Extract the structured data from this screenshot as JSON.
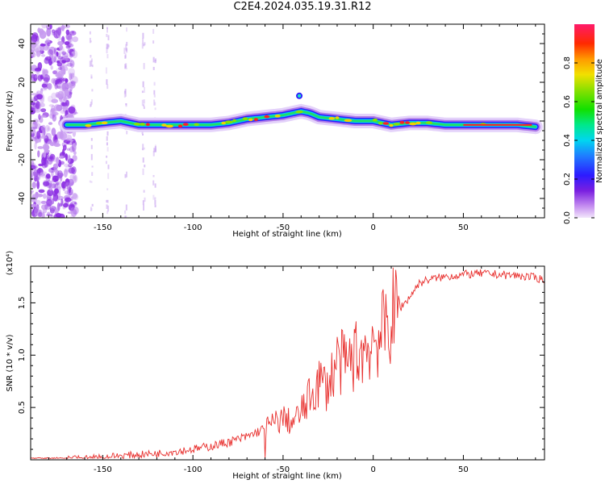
{
  "title": "C2E4.2024.035.19.31.R12",
  "colors": {
    "snr_line": "#e8302e",
    "background": "#ffffff"
  },
  "chart_data": [
    {
      "type": "heatmap",
      "title": "C2E4.2024.035.19.31.R12",
      "xlabel": "Height of straight line (km)",
      "ylabel": "Frequency (Hz)",
      "xlim": [
        -190,
        95
      ],
      "ylim": [
        -50,
        50
      ],
      "xticks": [
        -150,
        -100,
        -50,
        0,
        50
      ],
      "yticks": [
        -40,
        -20,
        0,
        20,
        40
      ],
      "colorbar": {
        "label": "Normalized spectral amplitude",
        "range": [
          0.0,
          1.0
        ],
        "ticks": [
          0.0,
          0.2,
          0.4,
          0.6,
          0.8
        ],
        "colormap": "rainbow"
      },
      "ridge_frequency": {
        "x": [
          -170,
          -160,
          -150,
          -140,
          -130,
          -120,
          -110,
          -100,
          -90,
          -80,
          -70,
          -60,
          -50,
          -40,
          -35,
          -30,
          -20,
          -10,
          0,
          10,
          20,
          30,
          40,
          50,
          60,
          70,
          80,
          90
        ],
        "y": [
          -2,
          -2,
          -1,
          0,
          -2,
          -2,
          -2,
          -2,
          -2,
          -1,
          1,
          2,
          3,
          5,
          4,
          2,
          1,
          0,
          0,
          -2,
          -1,
          -1,
          -2,
          -2,
          -2,
          -2,
          -2,
          -3
        ]
      },
      "noise_region_below_km": -165
    },
    {
      "type": "line",
      "xlabel": "Height of straight line (km)",
      "ylabel": "SNR (10 * v/v)",
      "y_multiplier": "(x10⁴)",
      "xlim": [
        -190,
        95
      ],
      "ylim": [
        0,
        1.85
      ],
      "xticks": [
        -150,
        -100,
        -50,
        0,
        50
      ],
      "yticks": [
        0.5,
        1.0,
        1.5
      ],
      "ytick_labels": [
        "0.5",
        "1.0",
        "1.5"
      ],
      "series": [
        {
          "x": [
            -190,
            -180,
            -170,
            -160,
            -150,
            -140,
            -130,
            -120,
            -110,
            -100,
            -90,
            -80,
            -70,
            -60,
            -55,
            -50,
            -45,
            -40,
            -35,
            -30,
            -25,
            -20,
            -15,
            -10,
            -5,
            0,
            5,
            10,
            15,
            20,
            25,
            30,
            40,
            50,
            60,
            70,
            80,
            90,
            95
          ],
          "y": [
            0.0,
            0.0,
            0.01,
            0.02,
            0.03,
            0.04,
            0.05,
            0.06,
            0.08,
            0.1,
            0.13,
            0.17,
            0.22,
            0.3,
            0.35,
            0.4,
            0.35,
            0.45,
            0.6,
            0.75,
            0.7,
            0.95,
            0.9,
            1.0,
            1.05,
            1.15,
            1.2,
            1.35,
            1.45,
            1.55,
            1.68,
            1.72,
            1.75,
            1.77,
            1.78,
            1.77,
            1.76,
            1.74,
            1.72
          ]
        }
      ]
    }
  ]
}
